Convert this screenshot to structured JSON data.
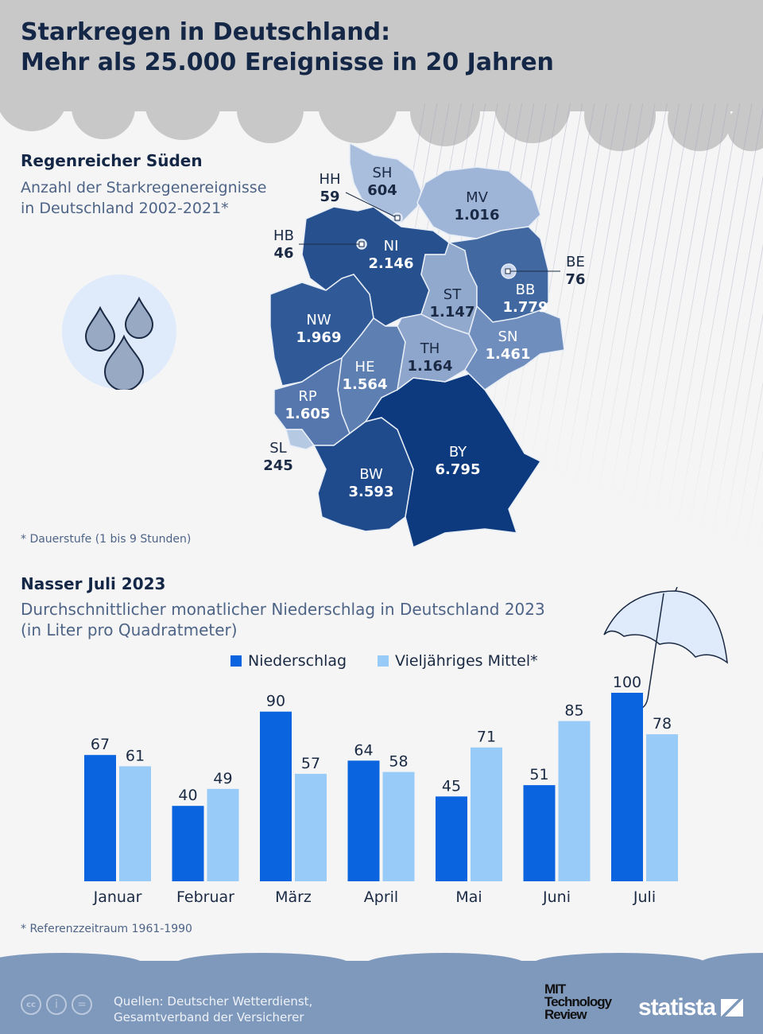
{
  "title_line1": "Starkregen in Deutschland:",
  "title_line2": "Mehr als 25.000 Ereignisse in 20 Jahren",
  "section1": {
    "heading": "Regenreicher Süden",
    "subtitle_line1": "Anzahl der Starkregenereignisse",
    "subtitle_line2": "in Deutschland 2002-2021*",
    "footnote": "* Dauerstufe (1 bis 9 Stunden)"
  },
  "map_data": [
    {
      "code": "SH",
      "value": "604"
    },
    {
      "code": "HH",
      "value": "59"
    },
    {
      "code": "MV",
      "value": "1.016"
    },
    {
      "code": "HB",
      "value": "46"
    },
    {
      "code": "NI",
      "value": "2.146"
    },
    {
      "code": "BE",
      "value": "76"
    },
    {
      "code": "ST",
      "value": "1.147"
    },
    {
      "code": "BB",
      "value": "1.779"
    },
    {
      "code": "NW",
      "value": "1.969"
    },
    {
      "code": "TH",
      "value": "1.164"
    },
    {
      "code": "SN",
      "value": "1.461"
    },
    {
      "code": "HE",
      "value": "1.564"
    },
    {
      "code": "RP",
      "value": "1.605"
    },
    {
      "code": "SL",
      "value": "245"
    },
    {
      "code": "BY",
      "value": "6.795"
    },
    {
      "code": "BW",
      "value": "3.593"
    }
  ],
  "section2": {
    "heading": "Nasser Juli 2023",
    "subtitle_line1": "Durchschnittlicher monatlicher Niederschlag in Deutschland 2023",
    "subtitle_line2": "(in Liter pro Quadratmeter)",
    "footnote": "* Referenzzeitraum 1961-1990"
  },
  "chart_data": {
    "type": "bar",
    "title": "Durchschnittlicher monatlicher Niederschlag in Deutschland 2023",
    "ylabel": "Liter pro Quadratmeter",
    "categories": [
      "Januar",
      "Februar",
      "März",
      "April",
      "Mai",
      "Juni",
      "Juli"
    ],
    "series": [
      {
        "name": "Niederschlag",
        "color": "#0a64e0",
        "values": [
          67,
          40,
          90,
          64,
          45,
          51,
          100
        ]
      },
      {
        "name": "Vieljähriges Mittel*",
        "color": "#99cbf8",
        "values": [
          61,
          49,
          57,
          58,
          71,
          85,
          78
        ]
      }
    ],
    "ylim": [
      0,
      100
    ],
    "legend": "top-center"
  },
  "footer": {
    "source_line1": "Quellen: Deutscher Wetterdienst,",
    "source_line2": "Gesamtverband der Versicherer",
    "logo1": "MIT Technology Review",
    "logo2": "statista"
  }
}
